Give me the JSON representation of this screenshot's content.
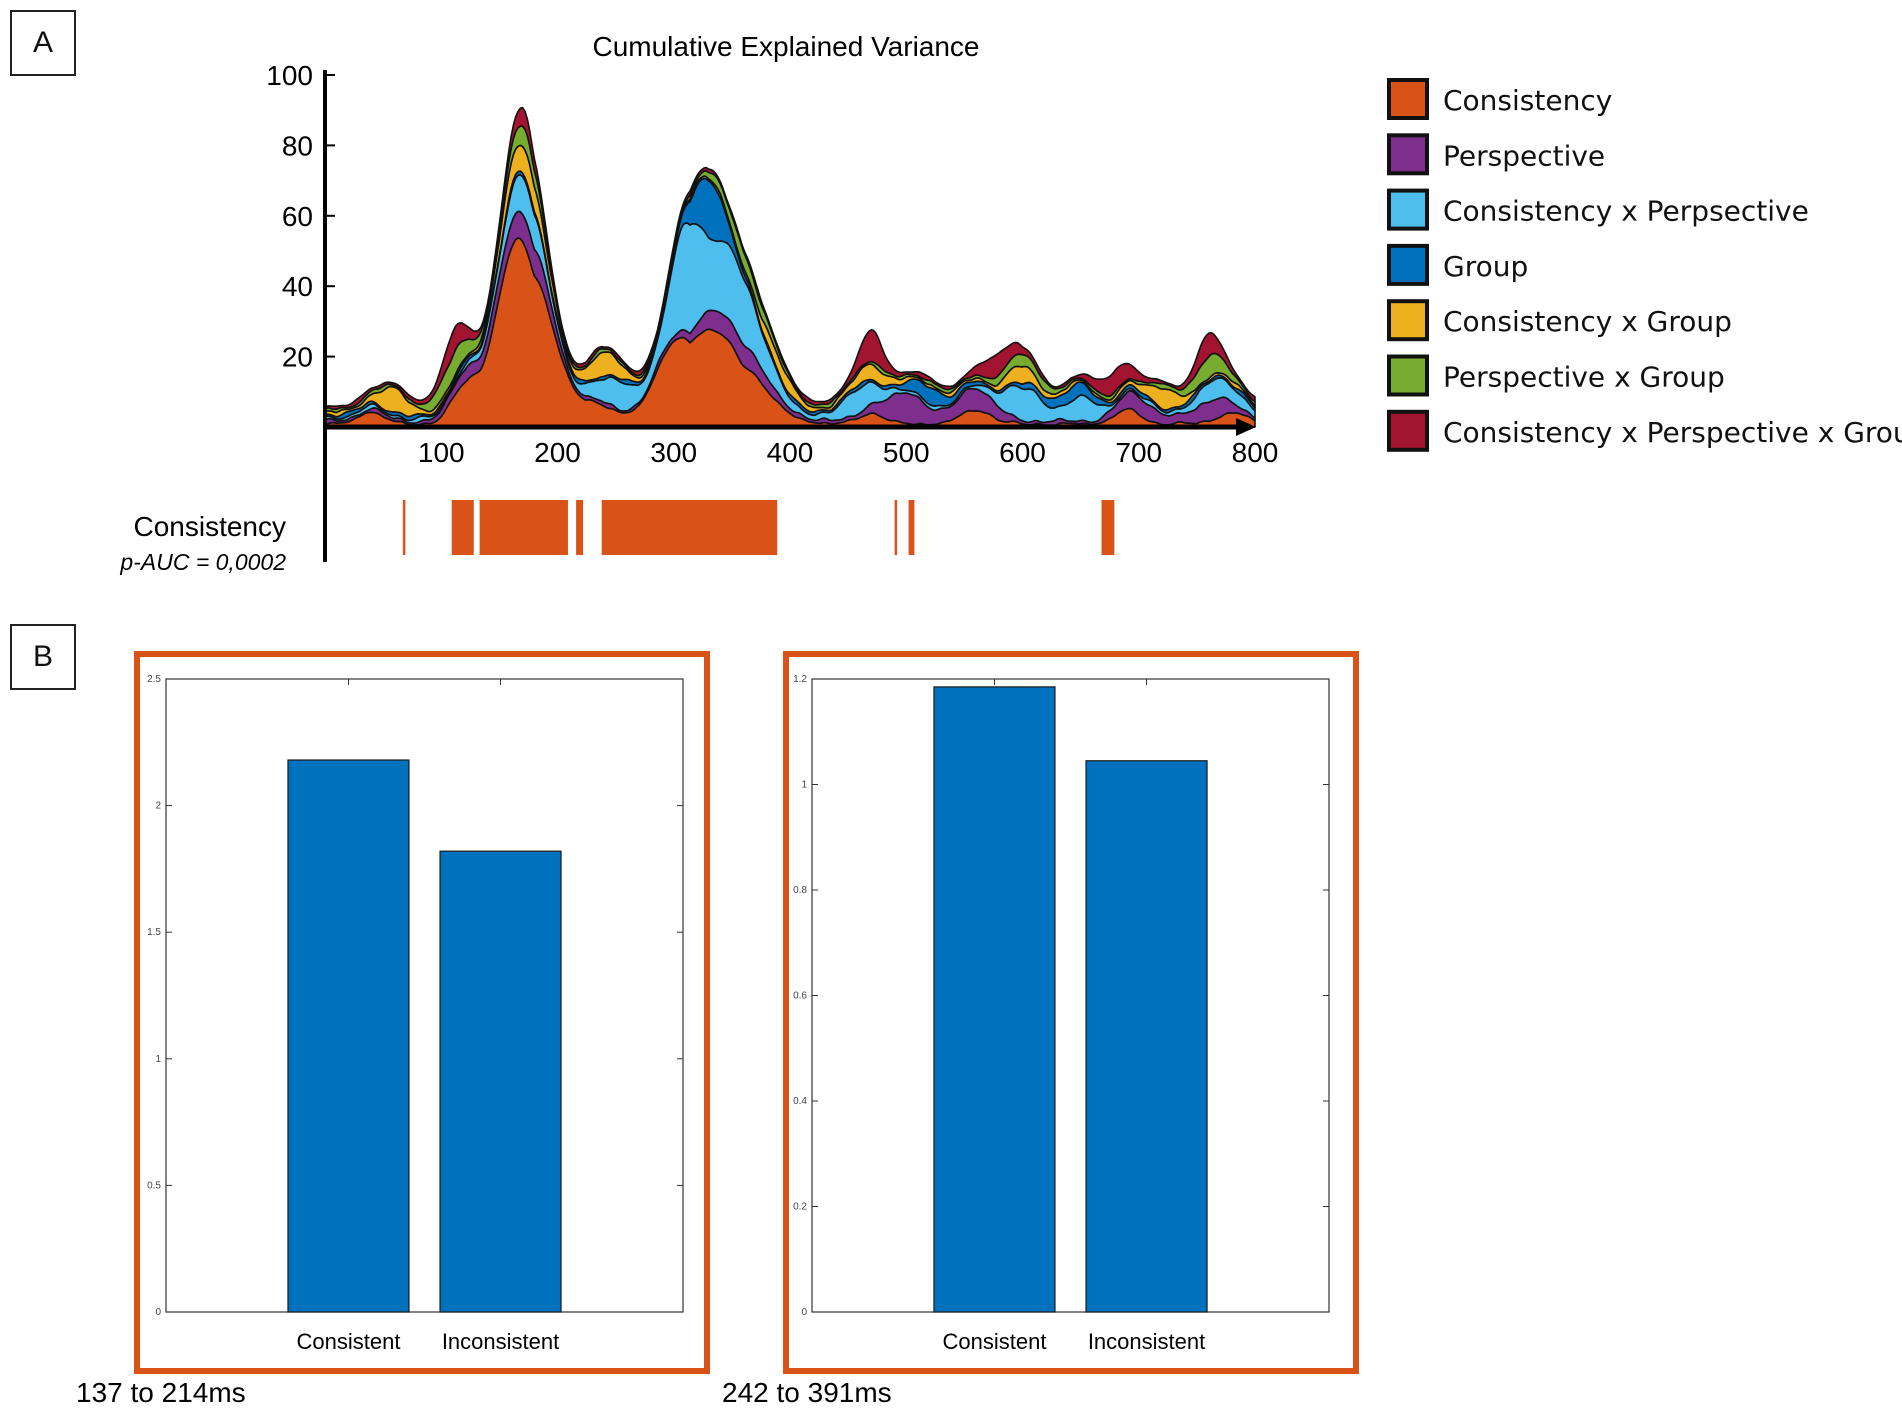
{
  "panels": {
    "a_label": "A",
    "b_label": "B"
  },
  "chart_data": [
    {
      "type": "area",
      "stacked": true,
      "title": "Cumulative Explained Variance",
      "xlabel": "",
      "ylabel": "",
      "xlim": [
        0,
        800
      ],
      "ylim": [
        0,
        100
      ],
      "x_ticks": [
        100,
        200,
        300,
        400,
        500,
        600,
        700,
        800
      ],
      "y_ticks": [
        20,
        40,
        60,
        80,
        100
      ],
      "legend_position": "right",
      "series": [
        {
          "name": "Consistency",
          "color": "#D95319",
          "peaks": [
            [
              170,
              55,
              22
            ],
            [
              340,
              24,
              30
            ],
            [
              300,
              14,
              20
            ],
            [
              120,
              8,
              12
            ],
            [
              230,
              6,
              15
            ],
            [
              40,
              4,
              10
            ],
            [
              470,
              3,
              12
            ],
            [
              560,
              4,
              14
            ],
            [
              690,
              4,
              12
            ],
            [
              780,
              3,
              15
            ]
          ]
        },
        {
          "name": "Perspective",
          "color": "#7E2F8E",
          "peaks": [
            [
              170,
              8,
              20
            ],
            [
              350,
              6,
              25
            ],
            [
              500,
              8,
              18
            ],
            [
              560,
              6,
              16
            ],
            [
              700,
              5,
              14
            ],
            [
              120,
              3,
              12
            ],
            [
              760,
              5,
              16
            ]
          ]
        },
        {
          "name": "Consistency x Perpsective",
          "color": "#4DBEEE",
          "peaks": [
            [
              170,
              10,
              18
            ],
            [
              310,
              25,
              14
            ],
            [
              350,
              20,
              24
            ],
            [
              250,
              8,
              16
            ],
            [
              460,
              7,
              15
            ],
            [
              600,
              10,
              14
            ],
            [
              650,
              7,
              12
            ],
            [
              770,
              5,
              18
            ]
          ]
        },
        {
          "name": "Group",
          "color": "#0072BD",
          "peaks": [
            [
              330,
              16,
              12
            ],
            [
              520,
              4,
              14
            ],
            [
              640,
              3,
              18
            ]
          ]
        },
        {
          "name": "Consistency x Group",
          "color": "#EDB120",
          "peaks": [
            [
              170,
              8,
              16
            ],
            [
              240,
              6,
              14
            ],
            [
              60,
              6,
              12
            ],
            [
              390,
              4,
              14
            ],
            [
              470,
              4,
              12
            ],
            [
              600,
              4,
              12
            ],
            [
              720,
              5,
              12
            ]
          ]
        },
        {
          "name": "Perspective x Group",
          "color": "#77AC30",
          "peaks": [
            [
              110,
              7,
              12
            ],
            [
              170,
              5,
              14
            ],
            [
              360,
              4,
              18
            ],
            [
              600,
              3,
              15
            ],
            [
              760,
              5,
              14
            ]
          ]
        },
        {
          "name": "Consistency x Perspective x Group",
          "color": "#A2142F",
          "peaks": [
            [
              110,
              6,
              10
            ],
            [
              170,
              4,
              12
            ],
            [
              470,
              8,
              10
            ],
            [
              580,
              6,
              12
            ],
            [
              680,
              6,
              12
            ],
            [
              760,
              6,
              10
            ]
          ]
        }
      ],
      "significance": {
        "label": "Consistency",
        "stat": "p-AUC = 0,0002",
        "color": "#D95319",
        "intervals": [
          [
            67,
            69
          ],
          [
            109,
            128
          ],
          [
            133,
            209
          ],
          [
            216,
            222
          ],
          [
            238,
            389
          ],
          [
            490,
            492
          ],
          [
            502,
            507
          ],
          [
            668,
            679
          ]
        ]
      }
    },
    {
      "type": "bar",
      "categories": [
        "Consistent",
        "Inconsistent"
      ],
      "values": [
        2.18,
        1.82
      ],
      "ylim": [
        0,
        2.5
      ],
      "y_ticks": [
        "0",
        "0.5",
        "1",
        "1.5",
        "2",
        "2.5"
      ],
      "y_tick_values": [
        0,
        0.5,
        1,
        1.5,
        2,
        2.5
      ],
      "bar_color": "#0072BD",
      "frame_color": "#D95319",
      "caption": "137 to 214ms"
    },
    {
      "type": "bar",
      "categories": [
        "Consistent",
        "Inconsistent"
      ],
      "values": [
        1.185,
        1.045
      ],
      "ylim": [
        0,
        1.2
      ],
      "y_ticks": [
        "0",
        "0.2",
        "0.4",
        "0.6",
        "0.8",
        "1",
        "1.2"
      ],
      "y_tick_values": [
        0,
        0.2,
        0.4,
        0.6,
        0.8,
        1,
        1.2
      ],
      "bar_color": "#0072BD",
      "frame_color": "#D95319",
      "caption": "242 to 391ms"
    }
  ]
}
